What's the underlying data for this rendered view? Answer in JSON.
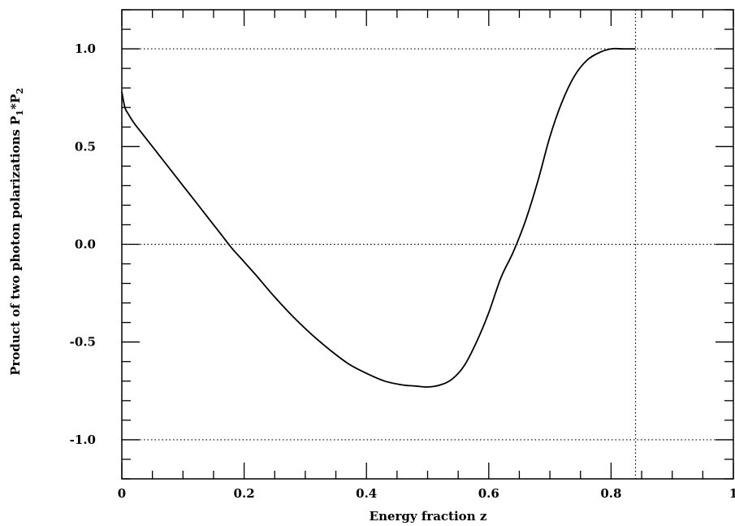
{
  "chart_data": {
    "type": "line",
    "xlabel": "Energy fraction  z",
    "ylabel": "Product of two photon polarizations  P",
    "ylabel_parts": {
      "text": "Product of two photon polarizations  P",
      "sub1": "1",
      "mid": "*P",
      "sub2": "2"
    },
    "xlim": [
      0,
      1
    ],
    "ylim": [
      -1.2,
      1.2
    ],
    "x_ticks": [
      0,
      0.2,
      0.4,
      0.6,
      0.8,
      1
    ],
    "x_tick_labels": [
      "0",
      "0.2",
      "0.4",
      "0.6",
      "0.8",
      "1"
    ],
    "y_ticks": [
      -1.0,
      -0.5,
      0.0,
      0.5,
      1.0
    ],
    "y_tick_labels": [
      "-1.0",
      "-0.5",
      "0.0",
      "0.5",
      "1.0"
    ],
    "reference_lines": {
      "horizontal_dotted": [
        1.0,
        0.0,
        -1.0
      ],
      "vertical_dotted": [
        0.84
      ]
    },
    "grid": false,
    "legend": "none",
    "series": [
      {
        "x": [
          0.0,
          0.005,
          0.01,
          0.02,
          0.03,
          0.04,
          0.06,
          0.08,
          0.1,
          0.12,
          0.14,
          0.16,
          0.18,
          0.2,
          0.22,
          0.25,
          0.28,
          0.31,
          0.34,
          0.37,
          0.4,
          0.43,
          0.46,
          0.48,
          0.5,
          0.52,
          0.54,
          0.56,
          0.58,
          0.6,
          0.62,
          0.64,
          0.66,
          0.68,
          0.7,
          0.72,
          0.74,
          0.76,
          0.78,
          0.8,
          0.82,
          0.84
        ],
        "y": [
          0.78,
          0.7,
          0.67,
          0.62,
          0.58,
          0.54,
          0.46,
          0.38,
          0.3,
          0.22,
          0.14,
          0.06,
          -0.02,
          -0.09,
          -0.16,
          -0.27,
          -0.37,
          -0.46,
          -0.54,
          -0.61,
          -0.66,
          -0.7,
          -0.72,
          -0.725,
          -0.73,
          -0.72,
          -0.69,
          -0.62,
          -0.5,
          -0.35,
          -0.17,
          -0.04,
          0.12,
          0.32,
          0.55,
          0.73,
          0.86,
          0.94,
          0.98,
          1.0,
          1.0,
          1.0
        ]
      }
    ]
  }
}
